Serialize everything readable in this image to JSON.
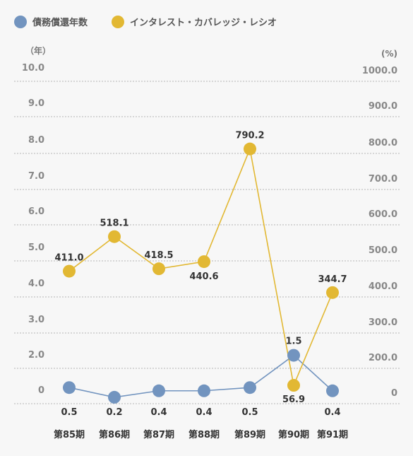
{
  "chart_data": {
    "type": "line",
    "categories": [
      "第85期",
      "第86期",
      "第87期",
      "第88期",
      "第89期",
      "第90期",
      "第91期"
    ],
    "series": [
      {
        "name": "債務償還年数",
        "axis": "left",
        "color": "#7294bf",
        "values": [
          0.5,
          0.2,
          0.4,
          0.4,
          0.5,
          1.5,
          0.4
        ],
        "labels": [
          "0.5",
          "0.2",
          "0.4",
          "0.4",
          "0.5",
          "1.5",
          "0.4"
        ]
      },
      {
        "name": "インタレスト・カバレッジ・レシオ",
        "axis": "right",
        "color": "#e2b833",
        "values": [
          411.0,
          518.1,
          418.5,
          440.6,
          790.2,
          56.9,
          344.7
        ],
        "labels": [
          "411.0",
          "518.1",
          "418.5",
          "440.6",
          "790.2",
          "56.9",
          "344.7"
        ]
      }
    ],
    "left_axis": {
      "unit": "（年）",
      "ticks": [
        "10.0",
        "9.0",
        "8.0",
        "7.0",
        "6.0",
        "5.0",
        "4.0",
        "3.0",
        "2.0",
        "0"
      ],
      "ylim": [
        0,
        10
      ]
    },
    "right_axis": {
      "unit": "(%)",
      "ticks": [
        "1000.0",
        "900.0",
        "800.0",
        "700.0",
        "600.0",
        "500.0",
        "400.0",
        "300.0",
        "200.0",
        "0"
      ],
      "ylim": [
        0,
        1000
      ]
    },
    "grid": true,
    "legend_position": "top-left"
  }
}
